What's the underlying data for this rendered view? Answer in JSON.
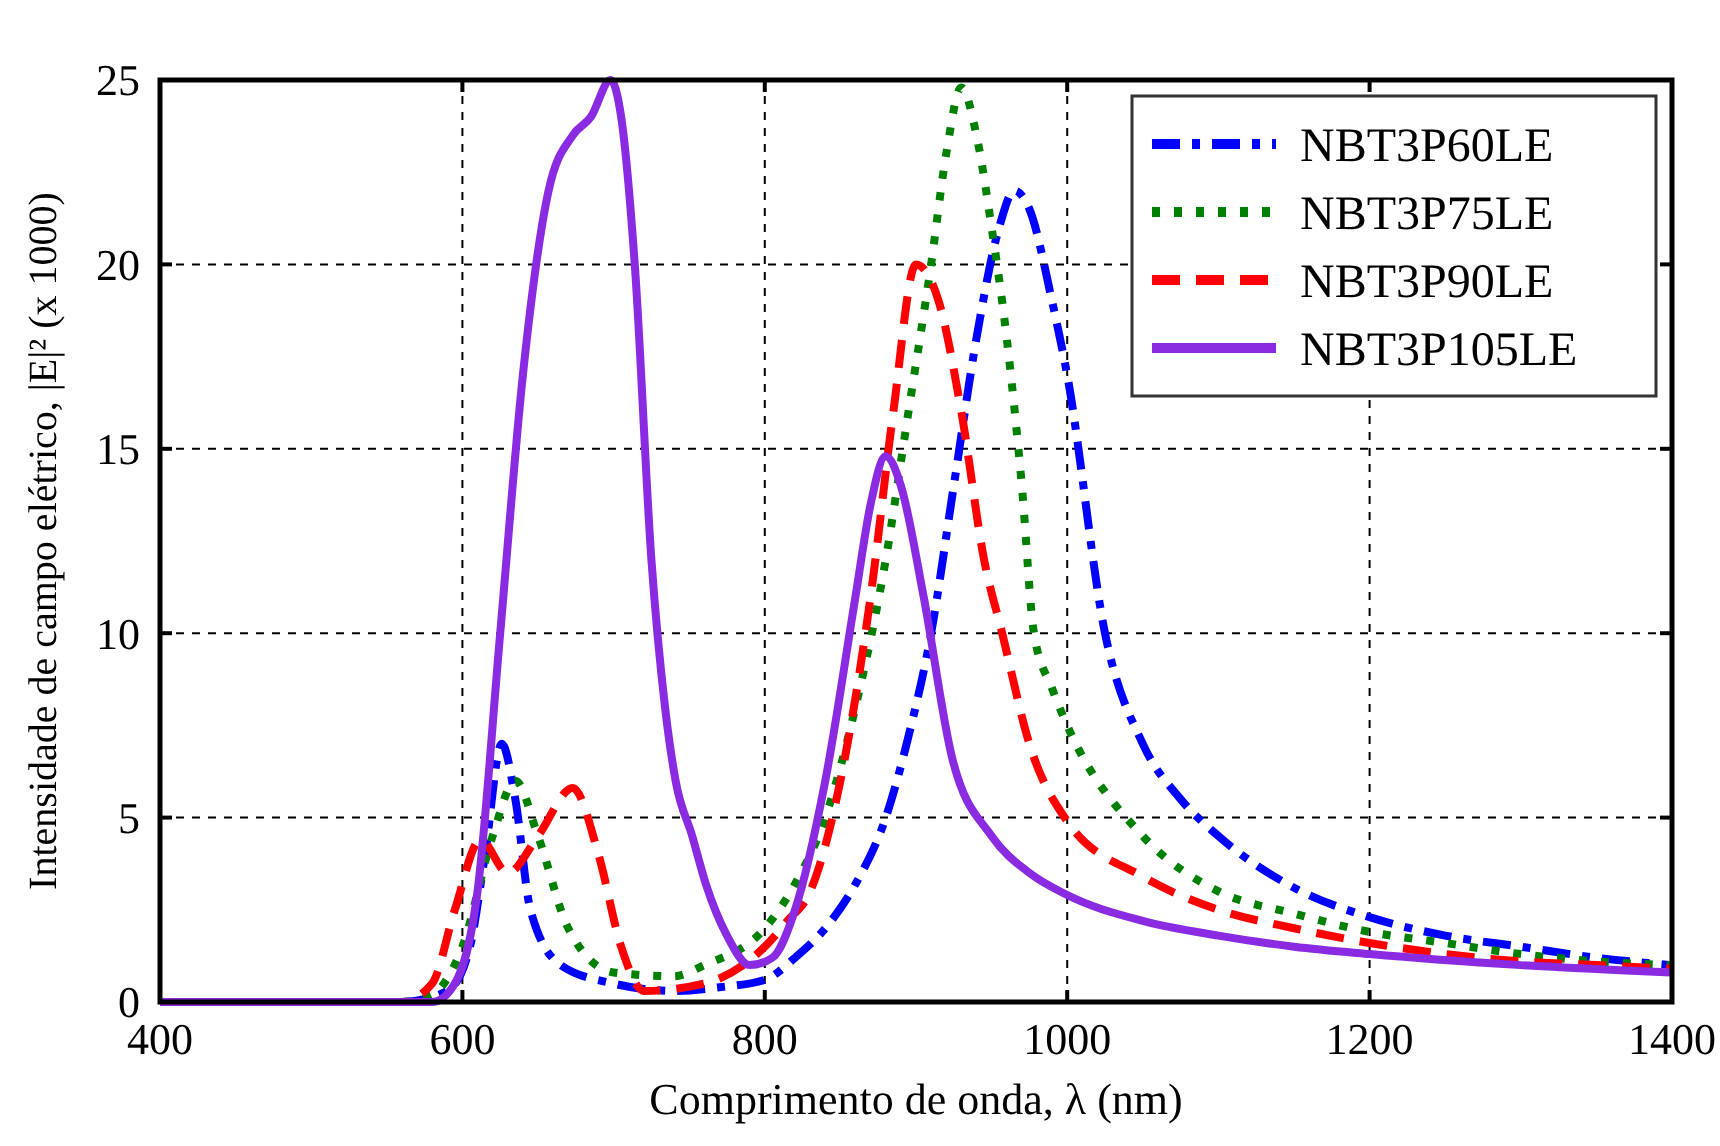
{
  "chart_data": {
    "type": "line",
    "xlabel": "Comprimento de onda, λ (nm)",
    "ylabel": "Intensidade de campo elétrico, |E|² (x 1000)",
    "xlim": [
      400,
      1400
    ],
    "ylim": [
      0,
      25
    ],
    "xticks": [
      400,
      600,
      800,
      1000,
      1200,
      1400
    ],
    "yticks": [
      0,
      5,
      10,
      15,
      20,
      25
    ],
    "grid": true,
    "legend": "top right",
    "series": [
      {
        "name": "NBT3P60LE",
        "color": "#0000ff",
        "line_style": "dashdot",
        "x": [
          400,
          560,
          590,
          605,
          615,
          626,
          635,
          645,
          665,
          700,
          740,
          770,
          800,
          820,
          840,
          860,
          880,
          895,
          910,
          925,
          940,
          955,
          965,
          975,
          990,
          1000,
          1025,
          1050,
          1075,
          1100,
          1150,
          1200,
          1250,
          1300,
          1350,
          1400
        ],
        "values": [
          0,
          0,
          0.3,
          1.5,
          4,
          7,
          5.5,
          2.5,
          1,
          0.5,
          0.3,
          0.4,
          0.6,
          1.2,
          2,
          3.2,
          5,
          7.2,
          10,
          14,
          18,
          21,
          22,
          21.5,
          19,
          17,
          10,
          7,
          5.5,
          4.5,
          3.1,
          2.3,
          1.8,
          1.5,
          1.2,
          1
        ]
      },
      {
        "name": "NBT3P75LE",
        "color": "#008000",
        "line_style": "dotted",
        "x": [
          400,
          560,
          580,
          600,
          620,
          635,
          650,
          670,
          700,
          740,
          760,
          800,
          820,
          840,
          860,
          880,
          895,
          910,
          920,
          930,
          940,
          950,
          960,
          970,
          978,
          990,
          1000,
          1050,
          1100,
          1150,
          1200,
          1250,
          1300,
          1350,
          1400
        ],
        "values": [
          0,
          0,
          0.2,
          1.5,
          4.5,
          6,
          4.5,
          2,
          0.8,
          0.7,
          1,
          2,
          3.2,
          5,
          8,
          12,
          16,
          20,
          23,
          24.8,
          23.5,
          21,
          18,
          14,
          10,
          8.5,
          7.5,
          4.5,
          3,
          2.4,
          1.9,
          1.6,
          1.3,
          1.1,
          1
        ]
      },
      {
        "name": "NBT3P90LE",
        "color": "#ff0000",
        "line_style": "dashed",
        "x": [
          400,
          560,
          580,
          595,
          612,
          630,
          650,
          673,
          690,
          705,
          720,
          760,
          800,
          815,
          830,
          850,
          870,
          885,
          900,
          915,
          930,
          945,
          957,
          975,
          1000,
          1050,
          1100,
          1150,
          1200,
          1250,
          1300,
          1350,
          1400
        ],
        "values": [
          0,
          0,
          0.5,
          2.5,
          4.4,
          3.5,
          4.5,
          5.8,
          4,
          1.5,
          0.3,
          0.5,
          1.5,
          2.2,
          3,
          6,
          11,
          16,
          20,
          19,
          16,
          12,
          10,
          7,
          4.9,
          3.4,
          2.5,
          2,
          1.6,
          1.3,
          1.1,
          1,
          0.9
        ]
      },
      {
        "name": "NBT3P105LE",
        "color": "#8a2be2",
        "line_style": "solid",
        "x": [
          400,
          580,
          595,
          610,
          625,
          640,
          657,
          673,
          685,
          698,
          705,
          714,
          725,
          734,
          741,
          752,
          761,
          775,
          790,
          805,
          820,
          840,
          860,
          870,
          880,
          890,
          905,
          924,
          950,
          975,
          1000,
          1050,
          1100,
          1150,
          1200,
          1300,
          1400
        ],
        "values": [
          0,
          0,
          0.5,
          3,
          10,
          17,
          22,
          23.5,
          24,
          25,
          24,
          20,
          12,
          8,
          6,
          4.5,
          3.2,
          1.8,
          1,
          1.2,
          2.5,
          6,
          11,
          13.5,
          14.8,
          14,
          11,
          6.6,
          4.5,
          3.5,
          2.9,
          2.2,
          1.8,
          1.5,
          1.3,
          1,
          0.8
        ]
      }
    ]
  }
}
